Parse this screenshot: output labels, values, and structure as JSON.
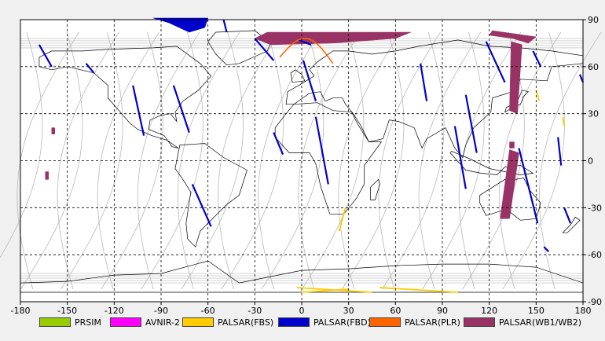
{
  "map": {
    "lon_ticks": [
      "-180",
      "-150",
      "-120",
      "-90",
      "-60",
      "-30",
      "0",
      "30",
      "60",
      "90",
      "120",
      "150",
      "180"
    ],
    "lat_ticks": [
      "90",
      "60",
      "30",
      "0",
      "-30",
      "-60",
      "-90"
    ],
    "lon_range": [
      -180,
      180
    ],
    "lat_range": [
      -90,
      90
    ],
    "grid": "dashed every 30 degrees",
    "colors": {
      "ocean": "#ffffff",
      "coastline": "#000000",
      "frame_background": "#f0f0f0",
      "orbit_tracks": "#b8b8b8"
    }
  },
  "legend": {
    "placement": "bottom",
    "items": [
      {
        "label": "PRSIM",
        "color": "#99cc00"
      },
      {
        "label": "AVNIR-2",
        "color": "#ff00ff"
      },
      {
        "label": "PALSAR(FBS)",
        "color": "#ffcc00"
      },
      {
        "label": "PALSAR(FBD)",
        "color": "#0000cc"
      },
      {
        "label": "PALSAR(PLR)",
        "color": "#ff6600"
      },
      {
        "label": "PALSAR(WB1/WB2)",
        "color": "#993366"
      }
    ]
  }
}
